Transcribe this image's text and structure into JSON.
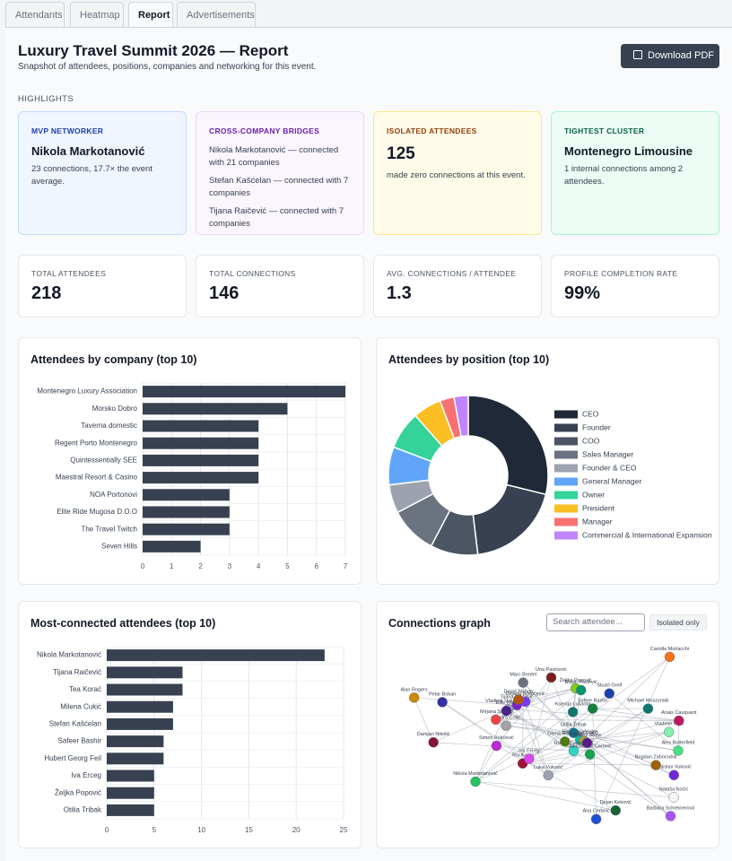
{
  "tabs": [
    "Attendants",
    "Heatmap",
    "Report",
    "Advertisements"
  ],
  "header": {
    "title": "Luxury Travel Summit 2026 — Report",
    "subtitle": "Snapshot of attendees, positions, companies and networking for this event.",
    "download_button": "Download PDF"
  },
  "highlights": {
    "label": "HIGHLIGHTS",
    "cards": [
      {
        "title": "MVP NETWORKER",
        "headline": "Nikola Markotanović",
        "lines": [
          "23 connections, 17.7× the event average."
        ]
      },
      {
        "title": "CROSS-COMPANY BRIDGES",
        "lines": [
          "Nikola Markotanović — connected with 21 companies",
          "Stefan Kašćelan — connected with 7 companies",
          "Tijana Raičević — connected with 7 companies"
        ]
      },
      {
        "title": "ISOLATED ATTENDEES",
        "headline": "125",
        "lines": [
          "made zero connections at this event."
        ]
      },
      {
        "title": "TIGHTEST CLUSTER",
        "headline": "Montenegro Limousine",
        "lines": [
          "1 internal connections among 2 attendees."
        ]
      }
    ]
  },
  "stats": [
    {
      "label": "TOTAL ATTENDEES",
      "value": 218
    },
    {
      "label": "TOTAL CONNECTIONS",
      "value": 146
    },
    {
      "label": "AVG. CONNECTIONS / ATTENDEE",
      "value": 1.3
    },
    {
      "label": "PROFILE COMPLETION RATE",
      "value": "99%"
    }
  ],
  "chart_data": [
    {
      "type": "hbar",
      "title": "Attendees by company (top 10)",
      "color": "#374151",
      "grid": true,
      "categories": [
        "Montenegro Luxury Association",
        "Morsko Dobro",
        "Taverna domestic",
        "Regent Porto Montenegro",
        "Quintessentially SEE",
        "Maestral Resort & Casino",
        "NOA Portonovi",
        "Elite Ride Mugosa D.O.O",
        "The Travel Twitch",
        "Seven Hills"
      ],
      "values": [
        7,
        5,
        4,
        4,
        4,
        4,
        3,
        3,
        3,
        2
      ],
      "xlim": [
        0,
        7
      ],
      "xticks": [
        0,
        1,
        2,
        3,
        4,
        5,
        6,
        7
      ]
    },
    {
      "type": "doughnut",
      "title": "Attendees by position (top 10)",
      "categories": [
        "CEO",
        "Founder",
        "COO",
        "Sales Manager",
        "Founder & CEO",
        "General Manager",
        "Owner",
        "President",
        "Manager",
        "Commercial & International Expansion"
      ],
      "values": [
        30,
        20,
        10,
        10,
        6,
        8,
        8,
        6,
        3,
        3
      ],
      "colors": [
        "#1f2937",
        "#374151",
        "#4b5563",
        "#6b7280",
        "#9ca3af",
        "#60a5fa",
        "#34d399",
        "#fbbf24",
        "#f87171",
        "#c084fc"
      ]
    },
    {
      "type": "hbar",
      "title": "Most-connected attendees (top 10)",
      "color": "#374151",
      "grid": true,
      "categories": [
        "Nikola Markotanović",
        "Tijana Raičević",
        "Tea Korać",
        "Milena Cukić",
        "Stefan Kašćelan",
        "Safeer Bashir",
        "Hubert Georg Feil",
        "Iva Erceg",
        "Željka Popović",
        "Otilia Tribak"
      ],
      "values": [
        23,
        8,
        8,
        7,
        7,
        6,
        6,
        5,
        5,
        5
      ],
      "xlim": [
        0,
        25
      ],
      "xticks": [
        0,
        5,
        10,
        15,
        20,
        25
      ]
    }
  ],
  "graph": {
    "title": "Connections graph",
    "search_placeholder": "Search attendee...",
    "toggle": "Isolated only",
    "nodes": [
      {
        "label": "Nikola Markotanović",
        "color": "#22c55e"
      },
      {
        "label": "Tijana Raičević",
        "color": "#7e22ce"
      },
      {
        "label": "Stefan Kašćelan",
        "color": "#14b8a6"
      },
      {
        "label": "Tea Korać",
        "color": "#9f1239"
      },
      {
        "label": "Milena Cukić",
        "color": "#a3a33a"
      },
      {
        "label": "Hubert Georg Feil",
        "color": "#2dd4bf"
      },
      {
        "label": "Safeer Bashir",
        "color": "#15803d"
      },
      {
        "label": "Iva Erceg",
        "color": "#d946ef"
      },
      {
        "label": "Željka Popović",
        "color": "#84cc16"
      },
      {
        "label": "Otilia Tribak",
        "color": "#0e7490"
      },
      {
        "label": "Nataša Kočić",
        "color": "#f5f5f5"
      },
      {
        "label": "Damjan Nikolić",
        "color": "#881337"
      },
      {
        "label": "Vojislav Vuković",
        "color": "#6d28d9"
      },
      {
        "label": "Aleksandar Cerović",
        "color": "#16a34a"
      },
      {
        "label": "Barbara Schreinerová",
        "color": "#a855f7"
      },
      {
        "label": "Vladimir Vukmanović",
        "color": "#9ca3af"
      },
      {
        "label": "Michael Moszynski",
        "color": "#0f766e"
      },
      {
        "label": "Petar Bokan",
        "color": "#3730a3"
      },
      {
        "label": "Dejana Stjepčević",
        "color": "#7c3aed"
      },
      {
        "label": "Alex Butterfield",
        "color": "#4ade80"
      },
      {
        "label": "Dejan Keković",
        "color": "#166534"
      },
      {
        "label": "Alan Rogers",
        "color": "#ca8a04"
      },
      {
        "label": "Olena Riabinina",
        "color": "#4d7c0f"
      },
      {
        "label": "Marc Bredel",
        "color": "#6b7280"
      },
      {
        "label": "Camilla Morlacchi",
        "color": "#f97316"
      },
      {
        "label": "Elite Ride",
        "color": "#4c1d95"
      },
      {
        "label": "Ana Ceranić",
        "color": "#1d4ed8"
      },
      {
        "label": "Una Pavićević",
        "color": "#7f1d1d"
      },
      {
        "label": "David Bishop",
        "color": "#b45309"
      },
      {
        "label": "Sandra Čolić",
        "color": "#a3a3a3"
      },
      {
        "label": "Simon Vukčević",
        "color": "#c026d3"
      },
      {
        "label": "Bojan Pavlović",
        "color": "#059669"
      },
      {
        "label": "Vladimir Prlja",
        "color": "#86efac"
      },
      {
        "label": "Bogdan Zahorodnii",
        "color": "#a16207"
      },
      {
        "label": "Jeffrey Shaw",
        "color": "#581c87"
      },
      {
        "label": "Luka Vuković",
        "color": "#9ca3af"
      },
      {
        "label": "Anais Cauquant",
        "color": "#be185d"
      },
      {
        "label": "Stuart Greif",
        "color": "#1e40af"
      },
      {
        "label": "Ksenija Lukarda",
        "color": "#0f766e"
      },
      {
        "label": "Mirjana Stefan",
        "color": "#ef4444"
      }
    ]
  }
}
